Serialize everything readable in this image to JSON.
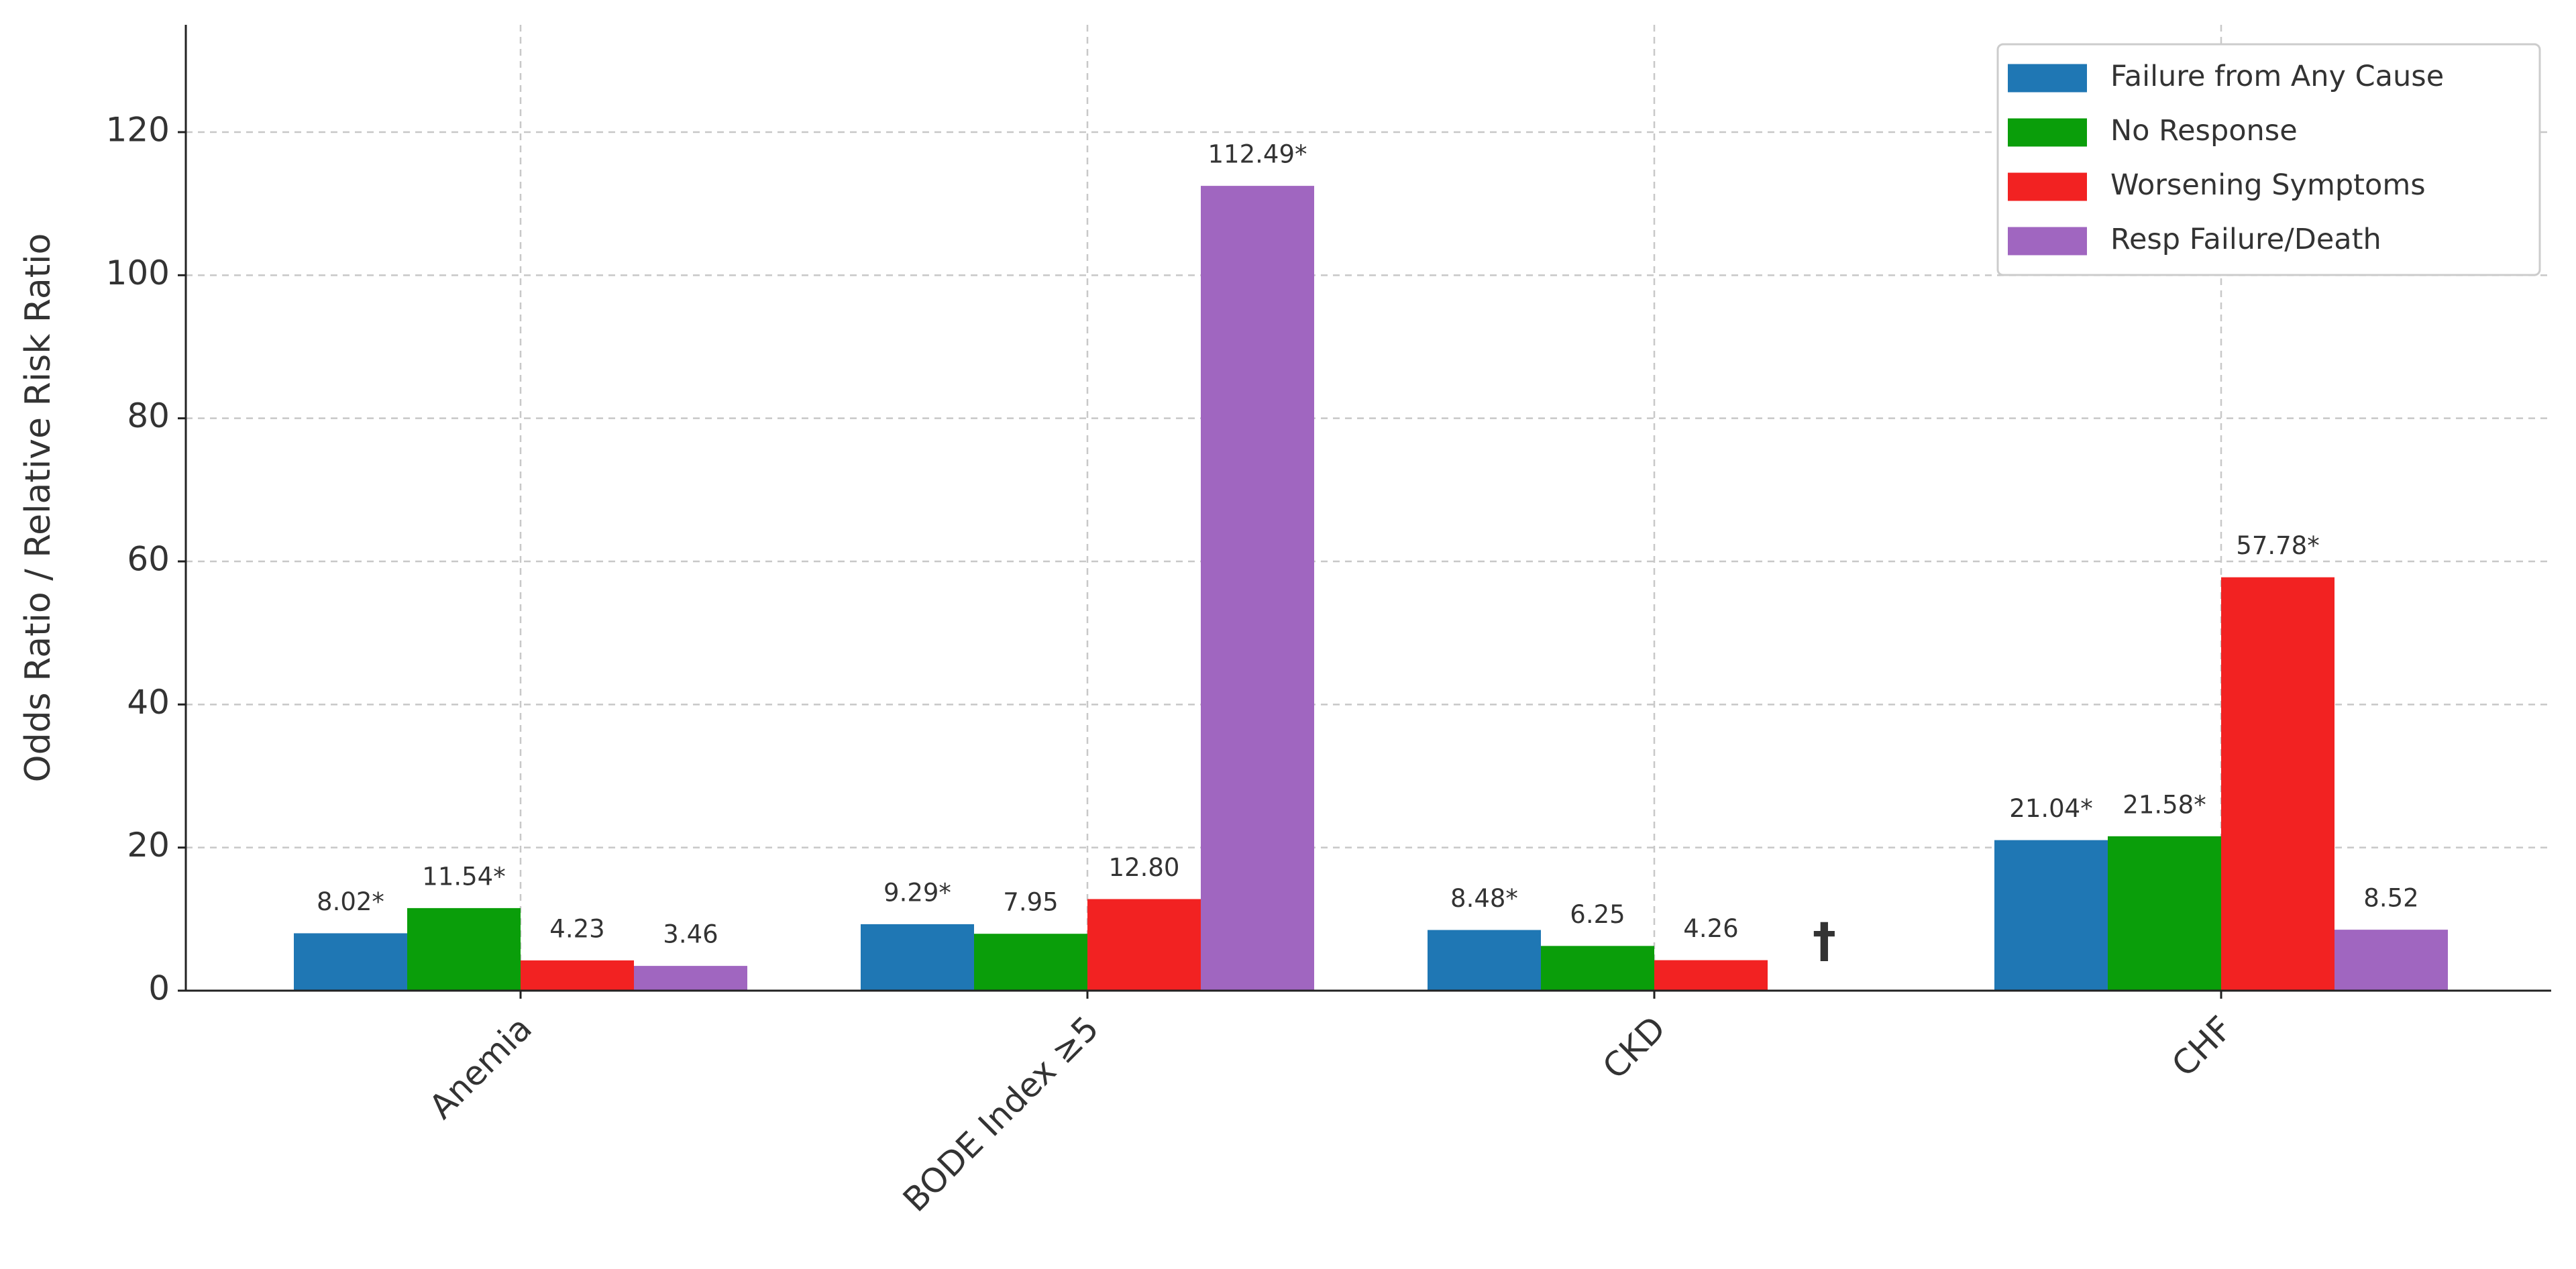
{
  "chart_data": {
    "type": "bar",
    "ylabel": "Odds Ratio / Relative Risk Ratio",
    "categories": [
      "Anemia",
      "BODE Index ≥5",
      "CKD",
      "CHF"
    ],
    "series": [
      {
        "name": "Failure from Any Cause",
        "color": "#1f77b4",
        "values": [
          8.02,
          9.29,
          8.48,
          21.04
        ],
        "value_labels": [
          "8.02*",
          "9.29*",
          "8.48*",
          "21.04*"
        ]
      },
      {
        "name": "No Response",
        "color": "#0a9e0a",
        "values": [
          11.54,
          7.95,
          6.25,
          21.58
        ],
        "value_labels": [
          "11.54*",
          "7.95",
          "6.25",
          "21.58*"
        ]
      },
      {
        "name": "Worsening Symptoms",
        "color": "#f22222",
        "values": [
          4.23,
          12.8,
          4.26,
          57.78
        ],
        "value_labels": [
          "4.23",
          "12.80",
          "4.26",
          "57.78*"
        ]
      },
      {
        "name": "Resp Failure/Death",
        "color": "#a066c0",
        "values": [
          3.46,
          112.49,
          null,
          8.52
        ],
        "value_labels": [
          "3.46",
          "112.49*",
          "†",
          "8.52"
        ]
      }
    ],
    "ylim": [
      0,
      135
    ],
    "yticks": [
      0,
      20,
      40,
      60,
      80,
      100,
      120
    ],
    "grid": true,
    "legend": "upper right"
  }
}
